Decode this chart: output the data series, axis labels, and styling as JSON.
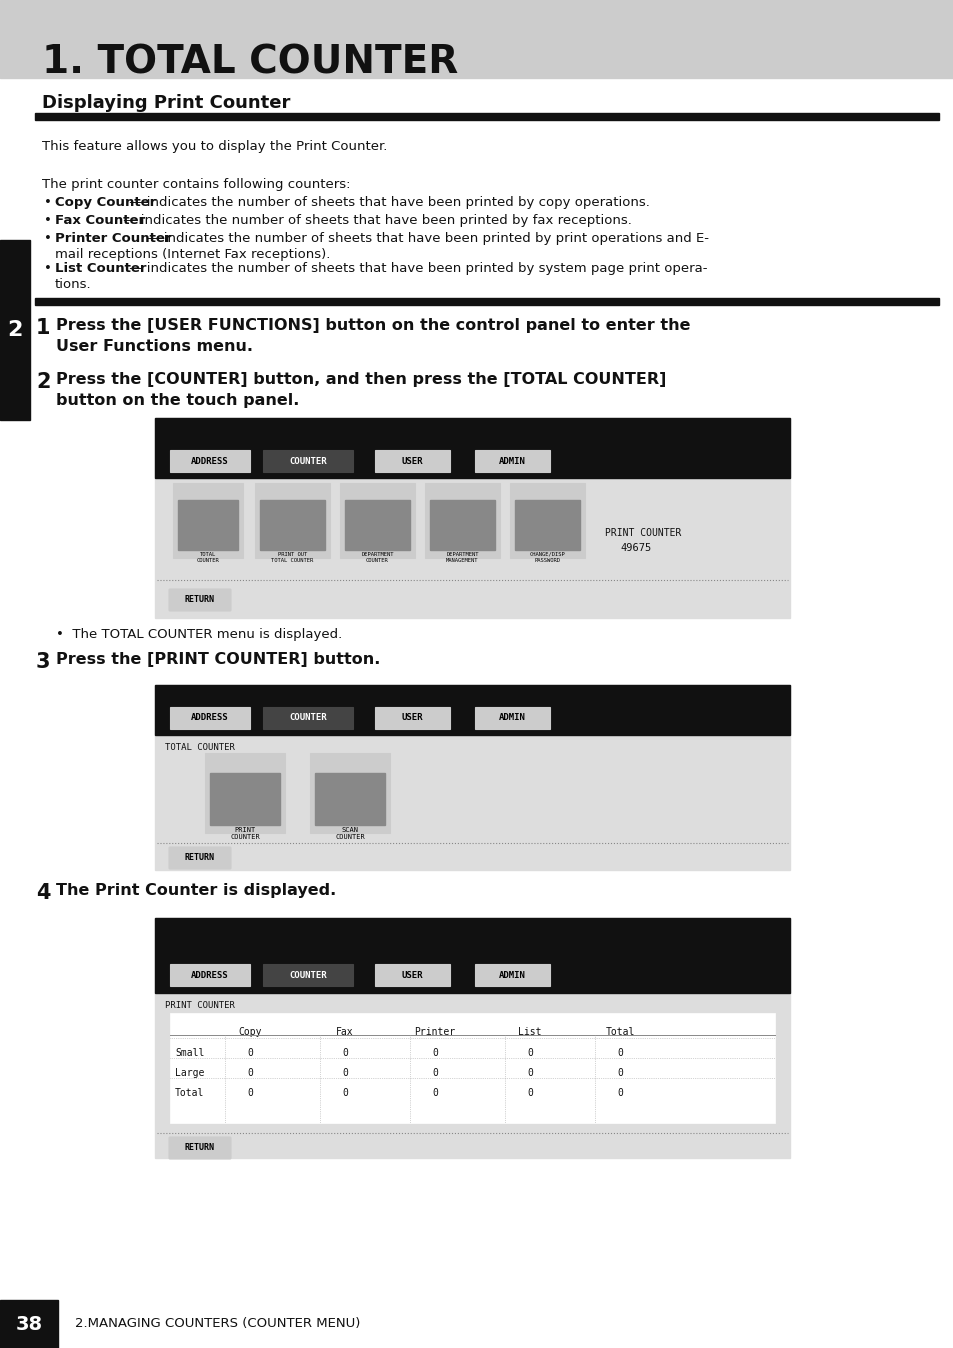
{
  "title": "1. TOTAL COUNTER",
  "section_title": "Displaying Print Counter",
  "bg_color_header": "#cccccc",
  "bg_color_page": "#ffffff",
  "sidebar_color": "#111111",
  "sidebar_number": "2",
  "page_number": "38",
  "footer_text": "2.MANAGING COUNTERS (COUNTER MENU)",
  "intro_text": "This feature allows you to display the Print Counter.",
  "bullet_intro": "The print counter contains following counters:",
  "step1_text": "Press the [USER FUNCTIONS] button on the control panel to enter the\nUser Functions menu.",
  "step2_text": "Press the [COUNTER] button, and then press the [TOTAL COUNTER]\nbutton on the touch panel.",
  "step2_note": "•  The TOTAL COUNTER menu is displayed.",
  "step3_text": "Press the [PRINT COUNTER] button.",
  "step4_text": "The Print Counter is displayed.",
  "screen1_print_counter_label": "PRINT COUNTER",
  "screen1_print_counter_val": "49675",
  "menu_labels": [
    "ADDRESS",
    "COUNTER",
    "USER",
    "ADMIN"
  ],
  "screen1_icons": [
    "TOTAL\nCOUNTER",
    "PRINT OUT\nTOTAL COUNTER",
    "DEPARTMENT\nCOUNTER",
    "DEPARTMENT\nMANAGEMENT",
    "CHANGE/DISP\nPASSWORD"
  ],
  "screen2_label": "TOTAL COUNTER",
  "screen2_icons": [
    "PRINT\nCOUNTER",
    "SCAN\nCOUNTER"
  ],
  "screen3_label": "PRINT COUNTER",
  "table_headers": [
    "",
    "Copy",
    "Fax",
    "Printer",
    "List",
    "Total"
  ],
  "table_rows": [
    [
      "Small",
      "0",
      "0",
      "0",
      "0",
      "0"
    ],
    [
      "Large",
      "0",
      "0",
      "0",
      "0",
      "0"
    ],
    [
      "Total",
      "0",
      "0",
      "0",
      "0",
      "0"
    ]
  ],
  "return_label": "RETURN"
}
